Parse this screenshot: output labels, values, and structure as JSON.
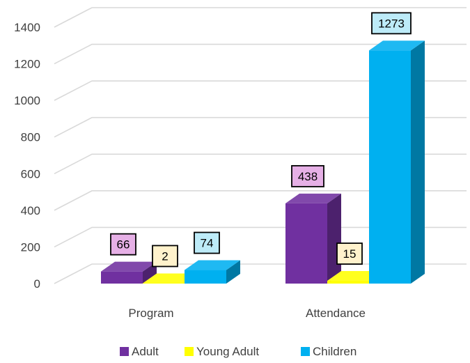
{
  "chart_data": {
    "type": "bar",
    "style": "3d-clustered-column",
    "categories": [
      "Program",
      "Attendance"
    ],
    "series": [
      {
        "name": "Adult",
        "values": [
          66,
          438
        ],
        "color": "#7030A0",
        "label_bg": "#E6B0E6"
      },
      {
        "name": "Young Adult",
        "values": [
          2,
          15
        ],
        "color": "#FFFF00",
        "label_bg": "#FFF2CC"
      },
      {
        "name": "Children",
        "values": [
          74,
          1273
        ],
        "color": "#00B0F0",
        "label_bg": "#BDEBF8"
      }
    ],
    "y_ticks": [
      "0",
      "200",
      "400",
      "600",
      "800",
      "1000",
      "1200",
      "1400"
    ],
    "ylim": [
      0,
      1400
    ],
    "grid": true,
    "legend_position": "bottom",
    "title": "",
    "xlabel": "",
    "ylabel": ""
  }
}
